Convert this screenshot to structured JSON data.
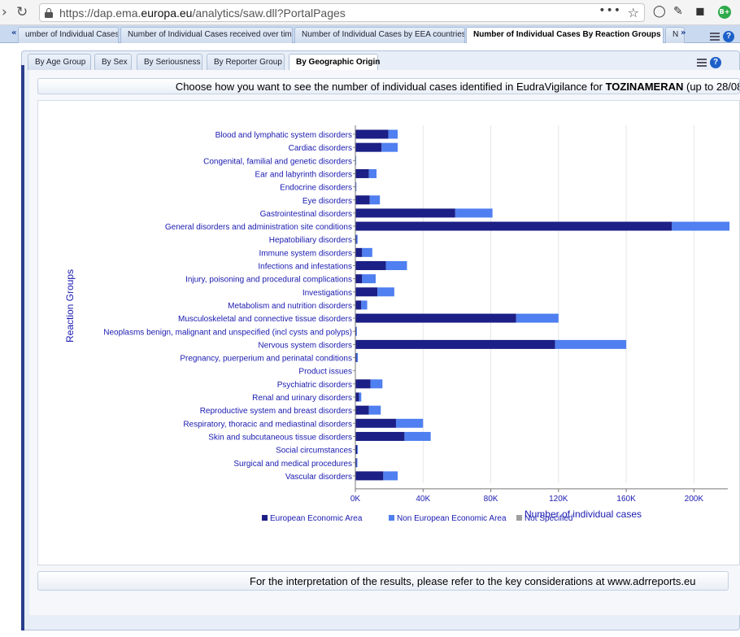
{
  "browser": {
    "url_prefix": "https://dap.ema.",
    "url_domain": "europa.eu",
    "url_suffix": "/analytics/saw.dll?PortalPages",
    "extension_badge": "B+"
  },
  "portal_tabs": [
    {
      "label": "umber of Individual Cases"
    },
    {
      "label": "Number of Individual Cases received over time"
    },
    {
      "label": "Number of Individual Cases by EEA countries"
    },
    {
      "label": "Number of Individual Cases By Reaction Groups"
    },
    {
      "label": "N"
    }
  ],
  "report_tabs": [
    {
      "label": "By Age Group"
    },
    {
      "label": "By Sex"
    },
    {
      "label": "By Seriousness"
    },
    {
      "label": "By Reporter Group"
    },
    {
      "label": "By Geographic Origin"
    }
  ],
  "banner": {
    "prefix": "Choose how you want to see the number of individual cases identified in EudraVigilance for ",
    "product": "TOZINAMERAN",
    "suffix": " (up to 28/08/"
  },
  "footer": {
    "text": "For the interpretation of the results, please refer to the key considerations at www.adrreports.eu"
  },
  "colors": {
    "eea": "#1c1f85",
    "non_eea": "#4f7ff0",
    "not_specified": "#a0a0a0",
    "axis_text": "#1a1ab0"
  },
  "chart_data": {
    "type": "bar",
    "orientation": "horizontal",
    "stacked": true,
    "ylabel": "Reaction Groups",
    "xlabel": "Number of individual cases",
    "xlim": [
      0,
      220000
    ],
    "xticks": [
      0,
      40000,
      80000,
      120000,
      160000,
      200000
    ],
    "xtick_labels": [
      "0K",
      "40K",
      "80K",
      "120K",
      "160K",
      "200K"
    ],
    "legend_position": "bottom",
    "categories": [
      "Blood and lymphatic system disorders",
      "Cardiac disorders",
      "Congenital, familial and genetic disorders",
      "Ear and labyrinth disorders",
      "Endocrine disorders",
      "Eye disorders",
      "Gastrointestinal disorders",
      "General disorders and administration site conditions",
      "Hepatobiliary disorders",
      "Immune system disorders",
      "Infections and infestations",
      "Injury, poisoning and procedural complications",
      "Investigations",
      "Metabolism and nutrition disorders",
      "Musculoskeletal and connective tissue disorders",
      "Neoplasms benign, malignant and unspecified (incl cysts and polyps)",
      "Nervous system disorders",
      "Pregnancy, puerperium and perinatal conditions",
      "Product issues",
      "Psychiatric disorders",
      "Renal and urinary disorders",
      "Reproductive system and breast disorders",
      "Respiratory, thoracic and mediastinal disorders",
      "Skin and subcutaneous tissue disorders",
      "Social circumstances",
      "Surgical and medical procedures",
      "Vascular disorders"
    ],
    "series": [
      {
        "name": "European Economic Area",
        "values": [
          19500,
          15500,
          300,
          8000,
          400,
          8500,
          59000,
          187000,
          700,
          4000,
          18000,
          4000,
          13000,
          3500,
          95000,
          500,
          118000,
          700,
          100,
          9000,
          2200,
          8000,
          24000,
          29000,
          1000,
          700,
          16500
        ]
      },
      {
        "name": "Non European Economic Area",
        "values": [
          5500,
          9500,
          200,
          4500,
          200,
          6000,
          22000,
          34000,
          600,
          6000,
          12500,
          8000,
          10000,
          3500,
          25000,
          400,
          42000,
          800,
          100,
          7000,
          1300,
          7000,
          16000,
          15500,
          500,
          500,
          8500
        ]
      },
      {
        "name": "Not Specified",
        "values": [
          0,
          0,
          0,
          0,
          0,
          0,
          0,
          0,
          0,
          0,
          0,
          0,
          0,
          0,
          0,
          0,
          0,
          0,
          0,
          0,
          0,
          0,
          0,
          0,
          0,
          0,
          0
        ]
      }
    ]
  }
}
